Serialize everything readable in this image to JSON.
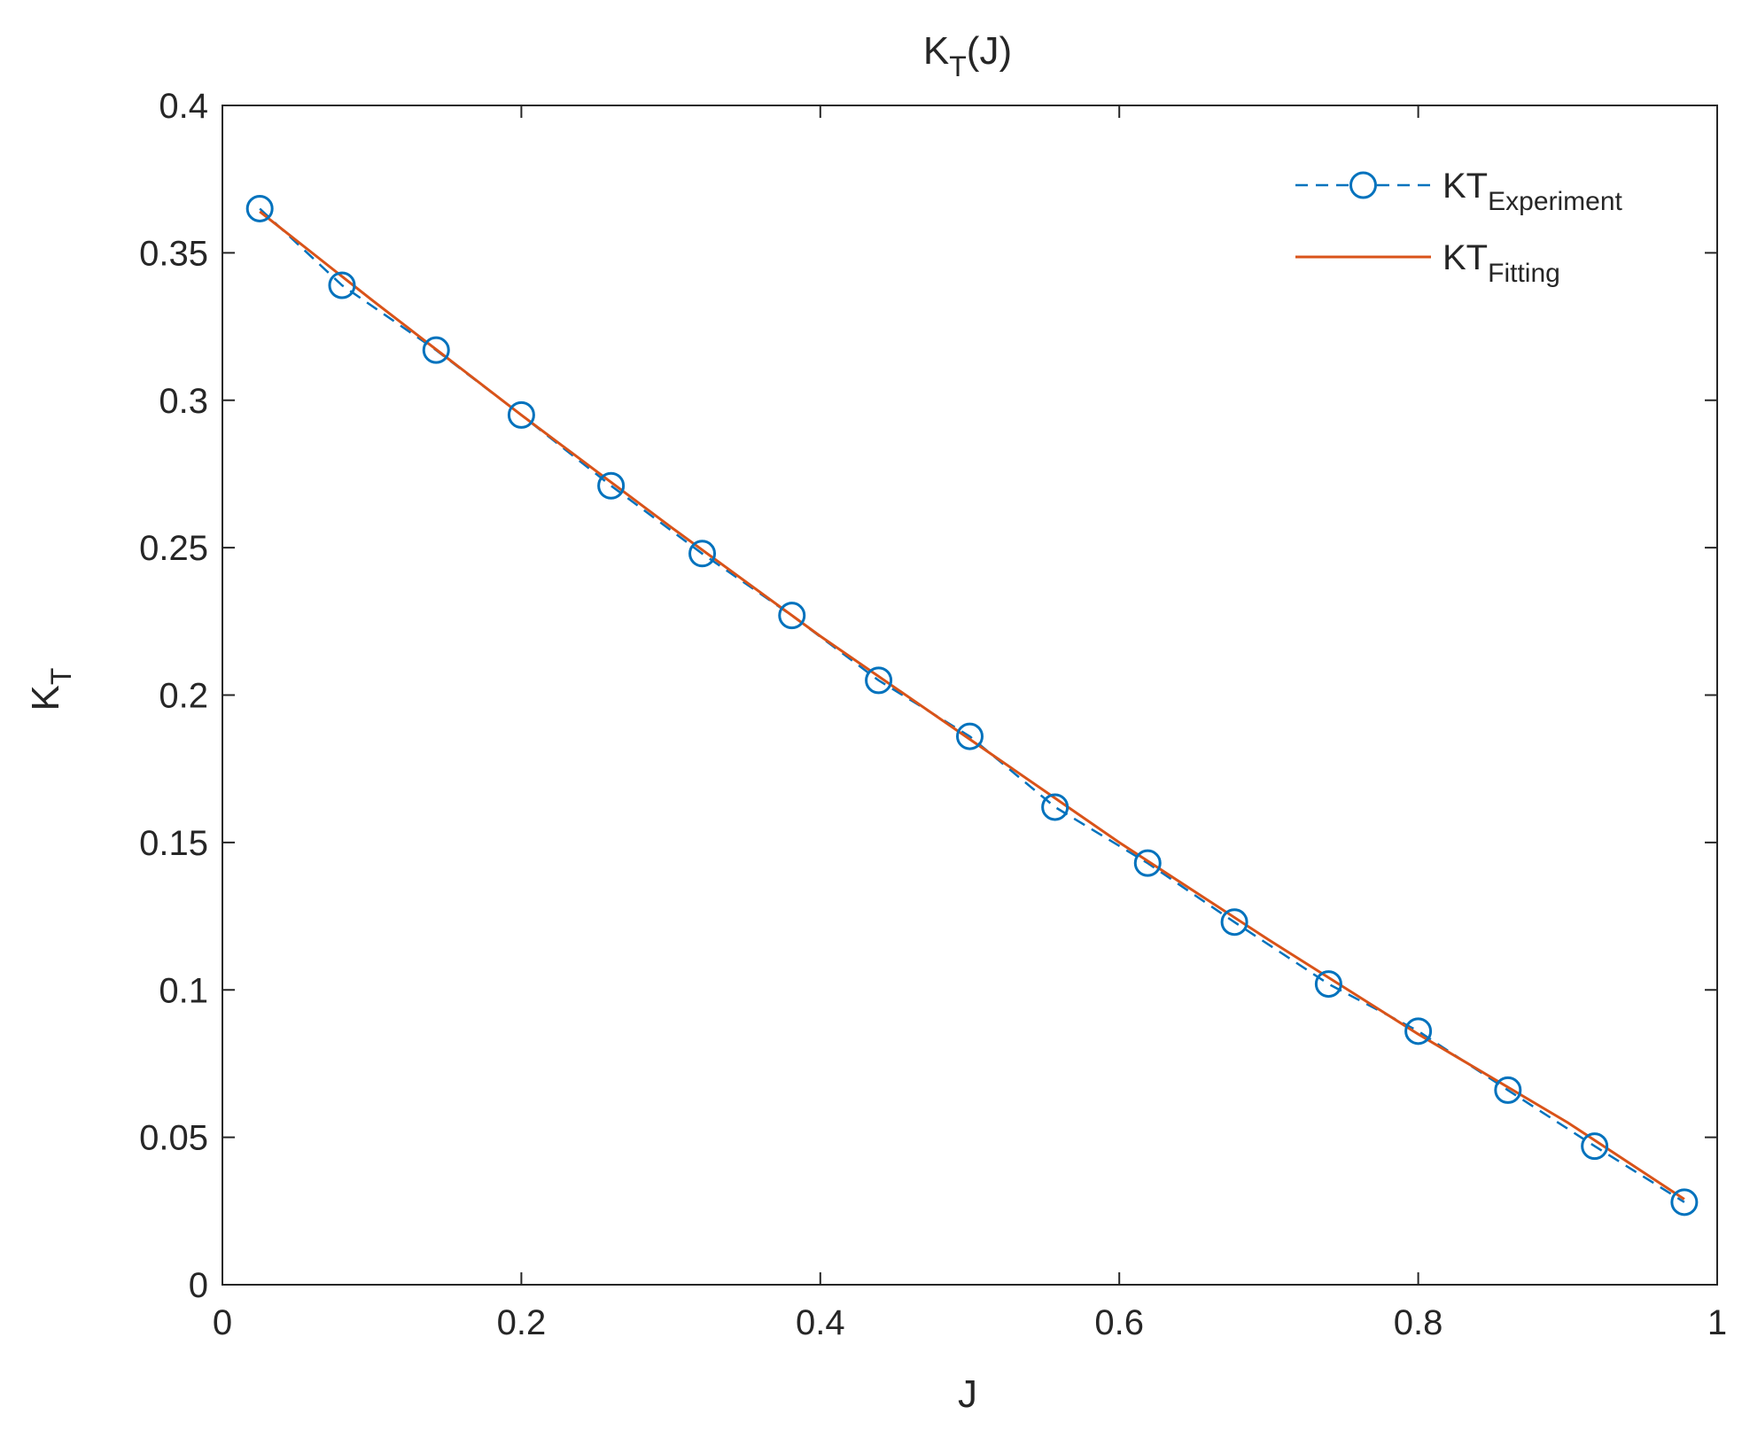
{
  "chart_data": {
    "type": "line",
    "title": "K",
    "title_sub": "T",
    "title_suffix": "(J)",
    "xlabel": "J",
    "ylabel": "K",
    "ylabel_sub": "T",
    "xlim": [
      0,
      1
    ],
    "ylim": [
      0,
      0.4
    ],
    "xticks": [
      0,
      0.2,
      0.4,
      0.6,
      0.8,
      1
    ],
    "xtick_labels": [
      "0",
      "0.2",
      "0.4",
      "0.6",
      "0.8",
      "1"
    ],
    "yticks": [
      0,
      0.05,
      0.1,
      0.15,
      0.2,
      0.25,
      0.3,
      0.35,
      0.4
    ],
    "ytick_labels": [
      "0",
      "0.05",
      "0.1",
      "0.15",
      "0.2",
      "0.25",
      "0.3",
      "0.35",
      "0.4"
    ],
    "grid": false,
    "legend_position": "top-right",
    "series": [
      {
        "name": "KT",
        "name_sub": "Experiment",
        "color": "#0072BD",
        "style": "dashed-circle",
        "x": [
          0.025,
          0.08,
          0.143,
          0.2,
          0.26,
          0.321,
          0.381,
          0.439,
          0.5,
          0.557,
          0.619,
          0.677,
          0.74,
          0.8,
          0.86,
          0.918,
          0.978
        ],
        "y": [
          0.365,
          0.339,
          0.317,
          0.295,
          0.271,
          0.248,
          0.227,
          0.205,
          0.186,
          0.162,
          0.143,
          0.123,
          0.102,
          0.086,
          0.066,
          0.047,
          0.028
        ]
      },
      {
        "name": "KT",
        "name_sub": "Fitting",
        "color": "#D95319",
        "style": "solid",
        "x": [
          0.025,
          0.1,
          0.2,
          0.3,
          0.4,
          0.5,
          0.6,
          0.7,
          0.8,
          0.9,
          0.978
        ],
        "y": [
          0.364,
          0.334,
          0.295,
          0.257,
          0.22,
          0.185,
          0.15,
          0.117,
          0.085,
          0.055,
          0.029
        ]
      }
    ]
  }
}
